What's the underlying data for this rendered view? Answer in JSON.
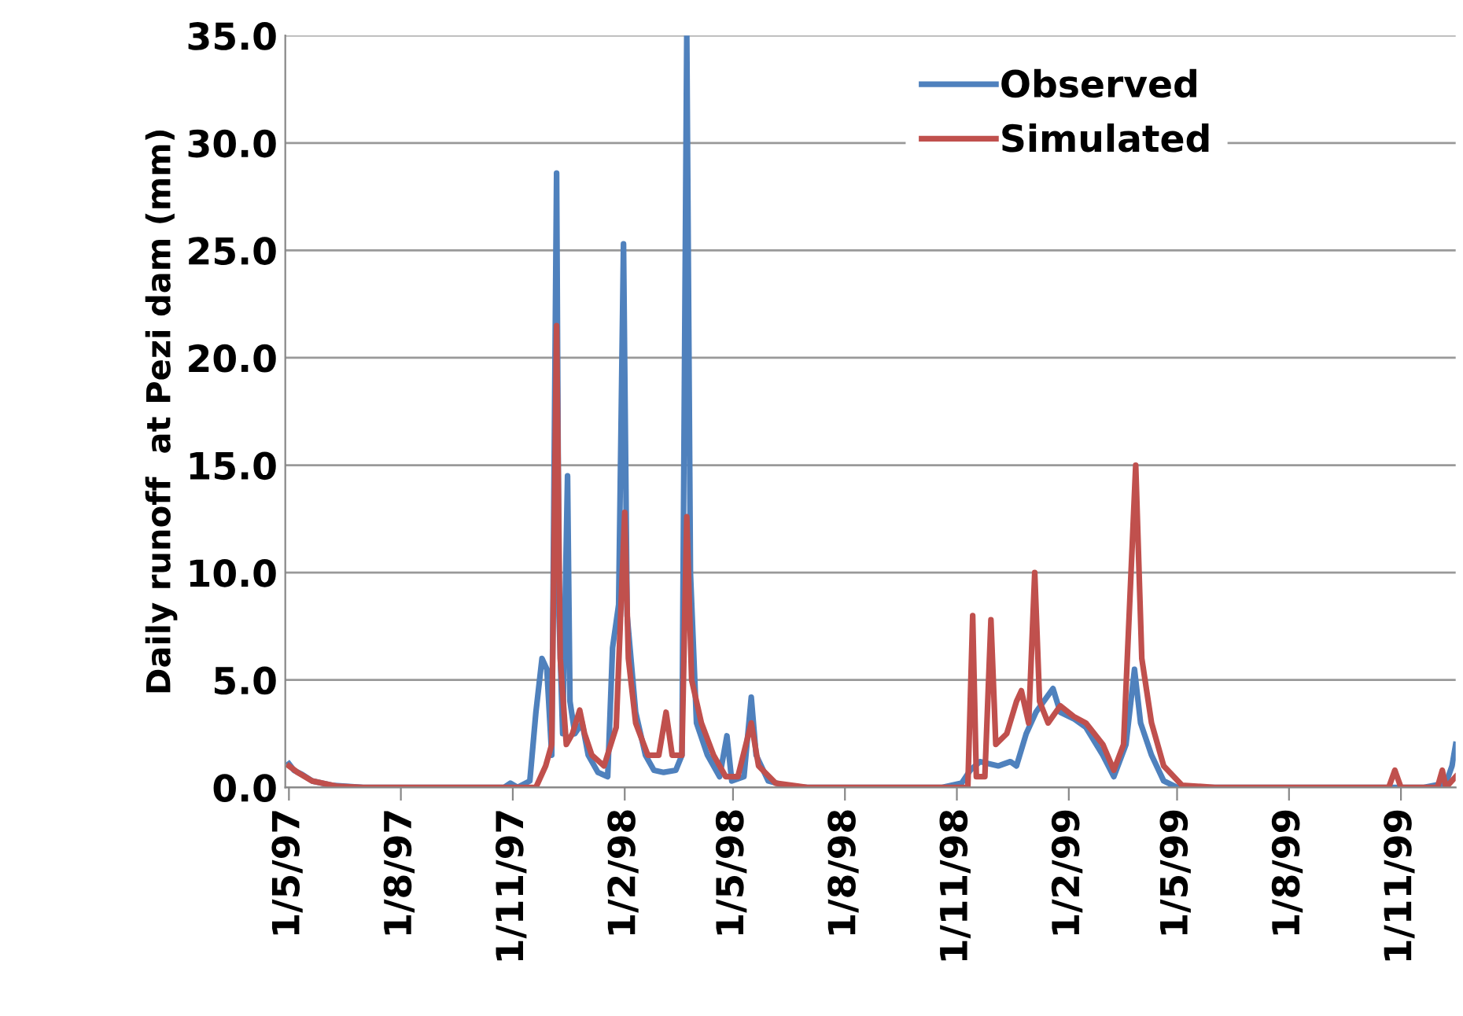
{
  "chart_data": {
    "type": "line",
    "ylabel": "Daily runoff  at Pezi dam (mm)",
    "xlim": [
      "1997-04-28",
      "1999-12-16"
    ],
    "xticks": [
      {
        "value": "1997-05-01",
        "label": "1/5/97"
      },
      {
        "value": "1997-08-01",
        "label": "1/8/97"
      },
      {
        "value": "1997-11-01",
        "label": "1/11/97"
      },
      {
        "value": "1998-02-01",
        "label": "1/2/98"
      },
      {
        "value": "1998-05-01",
        "label": "1/5/98"
      },
      {
        "value": "1998-08-01",
        "label": "1/8/98"
      },
      {
        "value": "1998-11-01",
        "label": "1/11/98"
      },
      {
        "value": "1999-02-01",
        "label": "1/2/99"
      },
      {
        "value": "1999-05-01",
        "label": "1/5/99"
      },
      {
        "value": "1999-08-01",
        "label": "1/8/99"
      },
      {
        "value": "1999-11-01",
        "label": "1/11/99"
      }
    ],
    "ylim": [
      0,
      35
    ],
    "yticks": [
      {
        "value": 0,
        "label": "0.0"
      },
      {
        "value": 5,
        "label": "5.0"
      },
      {
        "value": 10,
        "label": "10.0"
      },
      {
        "value": 15,
        "label": "15.0"
      },
      {
        "value": 20,
        "label": "20.0"
      },
      {
        "value": 25,
        "label": "25.0"
      },
      {
        "value": 30,
        "label": "30.0"
      },
      {
        "value": 35,
        "label": "35.0"
      }
    ],
    "grid": "y",
    "legend": "top right",
    "marker": "none",
    "line_style": "solid",
    "series": [
      {
        "name": "Observed",
        "color": "#4f81bd",
        "x": [
          "1997-05-01",
          "1997-05-05",
          "1997-05-12",
          "1997-05-20",
          "1997-06-05",
          "1997-07-01",
          "1997-10-25",
          "1997-10-30",
          "1997-11-05",
          "1997-11-15",
          "1997-11-20",
          "1997-11-25",
          "1997-11-29",
          "1997-12-03",
          "1997-12-07",
          "1997-12-09",
          "1997-12-12",
          "1997-12-16",
          "1997-12-18",
          "1997-12-22",
          "1997-12-28",
          "1998-01-02",
          "1998-01-10",
          "1998-01-18",
          "1998-01-22",
          "1998-01-27",
          "1998-01-31",
          "1998-02-03",
          "1998-02-10",
          "1998-02-18",
          "1998-02-25",
          "1998-03-05",
          "1998-03-15",
          "1998-03-20",
          "1998-03-24",
          "1998-03-27",
          "1998-04-01",
          "1998-04-10",
          "1998-04-20",
          "1998-04-26",
          "1998-04-30",
          "1998-05-10",
          "1998-05-16",
          "1998-05-20",
          "1998-05-30",
          "1998-06-15",
          "1998-07-01",
          "1998-10-20",
          "1998-11-05",
          "1998-11-12",
          "1998-11-20",
          "1998-12-05",
          "1998-12-15",
          "1998-12-20",
          "1998-12-28",
          "1999-01-05",
          "1999-01-19",
          "1999-01-25",
          "1999-02-05",
          "1999-02-15",
          "1999-03-01",
          "1999-03-10",
          "1999-03-20",
          "1999-03-27",
          "1999-04-01",
          "1999-04-10",
          "1999-04-20",
          "1999-05-01",
          "1999-11-20",
          "1999-12-08",
          "1999-12-13",
          "1999-12-16"
        ],
        "values": [
          1.1,
          0.8,
          0.6,
          0.3,
          0.1,
          0.0,
          0.0,
          0.2,
          0.0,
          0.3,
          3.5,
          6.0,
          5.5,
          1.5,
          28.6,
          8.0,
          2.5,
          14.5,
          4.0,
          2.5,
          3.0,
          1.5,
          0.7,
          0.5,
          6.5,
          8.5,
          25.3,
          8.0,
          3.5,
          1.5,
          0.8,
          0.7,
          0.8,
          1.5,
          35.0,
          10.0,
          3.0,
          1.5,
          0.5,
          2.4,
          0.3,
          0.5,
          4.2,
          1.5,
          0.3,
          0.05,
          0.0,
          0.0,
          0.2,
          0.8,
          1.2,
          1.0,
          1.2,
          1.0,
          2.5,
          3.5,
          4.6,
          3.5,
          3.2,
          2.8,
          1.5,
          0.5,
          2.0,
          5.5,
          3.0,
          1.5,
          0.3,
          0.0,
          0.0,
          0.2,
          1.0,
          2.0
        ]
      },
      {
        "name": "Simulated",
        "color": "#c0504d",
        "x": [
          "1997-05-01",
          "1997-05-08",
          "1997-05-20",
          "1997-06-10",
          "1997-07-01",
          "1997-11-20",
          "1997-11-28",
          "1997-12-03",
          "1997-12-07",
          "1997-12-10",
          "1997-12-15",
          "1997-12-20",
          "1997-12-26",
          "1997-12-30",
          "1998-01-05",
          "1998-01-15",
          "1998-01-25",
          "1998-02-01",
          "1998-02-04",
          "1998-02-10",
          "1998-02-20",
          "1998-03-01",
          "1998-03-07",
          "1998-03-12",
          "1998-03-20",
          "1998-03-24",
          "1998-03-28",
          "1998-04-05",
          "1998-04-15",
          "1998-04-25",
          "1998-05-05",
          "1998-05-16",
          "1998-05-22",
          "1998-06-05",
          "1998-07-01",
          "1998-11-10",
          "1998-11-14",
          "1998-11-17",
          "1998-11-24",
          "1998-11-29",
          "1998-12-03",
          "1998-12-12",
          "1998-12-20",
          "1998-12-24",
          "1998-12-30",
          "1999-01-04",
          "1999-01-08",
          "1999-01-15",
          "1999-01-25",
          "1999-02-05",
          "1999-02-15",
          "1999-03-01",
          "1999-03-10",
          "1999-03-18",
          "1999-03-28",
          "1999-04-02",
          "1999-04-10",
          "1999-04-20",
          "1999-05-05",
          "1999-06-01",
          "1999-10-22",
          "1999-10-27",
          "1999-11-01",
          "1999-12-01",
          "1999-12-05",
          "1999-12-08",
          "1999-12-16"
        ],
        "values": [
          1.0,
          0.7,
          0.3,
          0.05,
          0.0,
          0.0,
          1.0,
          2.0,
          21.5,
          6.0,
          2.0,
          2.5,
          3.6,
          2.5,
          1.5,
          1.0,
          2.8,
          12.8,
          6.0,
          3.0,
          1.5,
          1.5,
          3.5,
          1.5,
          1.5,
          12.6,
          5.0,
          3.0,
          1.5,
          0.5,
          0.5,
          3.0,
          1.0,
          0.2,
          0.0,
          0.0,
          8.0,
          0.5,
          0.5,
          7.8,
          2.0,
          2.5,
          4.0,
          4.5,
          3.0,
          10.0,
          4.0,
          3.0,
          3.8,
          3.3,
          3.0,
          2.0,
          0.8,
          2.0,
          15.0,
          6.0,
          3.0,
          1.0,
          0.1,
          0.0,
          0.0,
          0.8,
          0.0,
          0.0,
          0.8,
          0.0,
          0.5
        ]
      }
    ]
  }
}
